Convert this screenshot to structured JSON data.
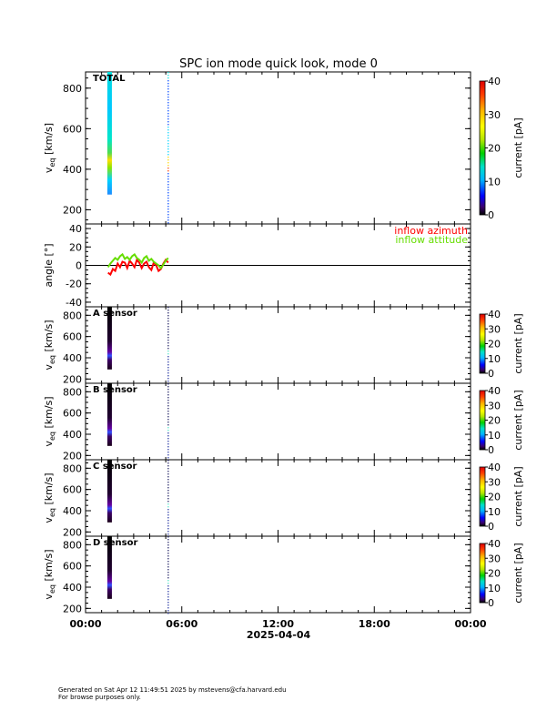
{
  "title": "SPC ion mode quick look, mode 0",
  "footer": {
    "line1": "Generated on Sat Apr 12 11:49:51 2025 by mstevens@cfa.harvard.edu",
    "line2": "For browse purposes only."
  },
  "x_axis": {
    "ticks": [
      "00:00",
      "06:00",
      "12:00",
      "18:00",
      "00:00"
    ],
    "tick_hours": [
      0,
      6,
      12,
      18,
      24
    ],
    "date_label": "2025-04-04",
    "range_hours": [
      0,
      24
    ]
  },
  "chart_data": [
    {
      "type": "heatmap",
      "name": "TOTAL",
      "ylabel": "v_eq [km/s]",
      "ylim": [
        130,
        880
      ],
      "yticks": [
        200,
        400,
        600,
        800
      ],
      "colorbar": {
        "label": "current [pA]",
        "range": [
          0,
          40
        ],
        "ticks": [
          0,
          10,
          20,
          30,
          40
        ]
      },
      "segments": [
        {
          "t_hours": 1.5,
          "vmin": 275,
          "vmax": 880,
          "style": "main"
        },
        {
          "t_hours": 5.15,
          "vmin": 50,
          "vmax": 880,
          "style": "dots"
        }
      ]
    },
    {
      "type": "line",
      "ylabel": "angle [°]",
      "ylim": [
        -45,
        45
      ],
      "yticks": [
        -40,
        -20,
        0,
        20,
        40
      ],
      "zero_line": true,
      "legend": "top-right",
      "series": [
        {
          "name": "inflow azimuth",
          "color": "#ff0000",
          "x": [
            1.4,
            1.55,
            1.7,
            1.85,
            2.0,
            2.15,
            2.3,
            2.45,
            2.6,
            2.75,
            2.9,
            3.05,
            3.2,
            3.35,
            3.5,
            3.65,
            3.8,
            3.95,
            4.1,
            4.25,
            4.4,
            4.55,
            4.7,
            4.85,
            5.0,
            5.15
          ],
          "values": [
            -8,
            -10,
            -4,
            -6,
            2,
            -2,
            4,
            3,
            -3,
            5,
            2,
            -2,
            6,
            3,
            -3,
            2,
            4,
            -2,
            -5,
            3,
            0,
            -6,
            -4,
            2,
            6,
            3
          ]
        },
        {
          "name": "inflow attitude",
          "color": "#66dd00",
          "x": [
            1.4,
            1.55,
            1.7,
            1.85,
            2.0,
            2.15,
            2.3,
            2.45,
            2.6,
            2.75,
            2.9,
            3.05,
            3.2,
            3.35,
            3.5,
            3.65,
            3.8,
            3.95,
            4.1,
            4.25,
            4.4,
            4.55,
            4.7,
            4.85,
            5.0,
            5.15
          ],
          "values": [
            -2,
            2,
            5,
            8,
            6,
            10,
            12,
            7,
            9,
            6,
            10,
            12,
            8,
            6,
            3,
            8,
            10,
            5,
            7,
            4,
            2,
            0,
            -3,
            1,
            5,
            8
          ]
        }
      ]
    },
    {
      "type": "heatmap",
      "name": "A sensor",
      "ylabel": "v_eq [km/s]",
      "ylim": [
        160,
        880
      ],
      "yticks": [
        200,
        400,
        600,
        800
      ],
      "colorbar": {
        "label": "current [pA]",
        "range": [
          0,
          40
        ],
        "ticks": [
          0,
          10,
          20,
          30,
          40
        ]
      },
      "segments": [
        {
          "t_hours": 1.5,
          "vmin": 290,
          "vmax": 880,
          "style": "dark"
        },
        {
          "t_hours": 5.15,
          "vmin": 160,
          "vmax": 880,
          "style": "dots"
        }
      ]
    },
    {
      "type": "heatmap",
      "name": "B sensor",
      "ylabel": "v_eq [km/s]",
      "ylim": [
        160,
        880
      ],
      "yticks": [
        200,
        400,
        600,
        800
      ],
      "colorbar": {
        "label": "current [pA]",
        "range": [
          0,
          40
        ],
        "ticks": [
          0,
          10,
          20,
          30,
          40
        ]
      },
      "segments": [
        {
          "t_hours": 1.5,
          "vmin": 290,
          "vmax": 880,
          "style": "dark"
        },
        {
          "t_hours": 5.15,
          "vmin": 160,
          "vmax": 880,
          "style": "dots"
        }
      ]
    },
    {
      "type": "heatmap",
      "name": "C sensor",
      "ylabel": "v_eq [km/s]",
      "ylim": [
        160,
        880
      ],
      "yticks": [
        200,
        400,
        600,
        800
      ],
      "colorbar": {
        "label": "current [pA]",
        "range": [
          0,
          40
        ],
        "ticks": [
          0,
          10,
          20,
          30,
          40
        ]
      },
      "segments": [
        {
          "t_hours": 1.5,
          "vmin": 290,
          "vmax": 880,
          "style": "dark"
        },
        {
          "t_hours": 5.15,
          "vmin": 160,
          "vmax": 880,
          "style": "dots"
        }
      ]
    },
    {
      "type": "heatmap",
      "name": "D sensor",
      "ylabel": "v_eq [km/s]",
      "ylim": [
        160,
        880
      ],
      "yticks": [
        200,
        400,
        600,
        800
      ],
      "colorbar": {
        "label": "current [pA]",
        "range": [
          0,
          40
        ],
        "ticks": [
          0,
          10,
          20,
          30,
          40
        ]
      },
      "segments": [
        {
          "t_hours": 1.5,
          "vmin": 290,
          "vmax": 880,
          "style": "dark"
        },
        {
          "t_hours": 5.15,
          "vmin": 160,
          "vmax": 880,
          "style": "dots"
        }
      ]
    }
  ]
}
